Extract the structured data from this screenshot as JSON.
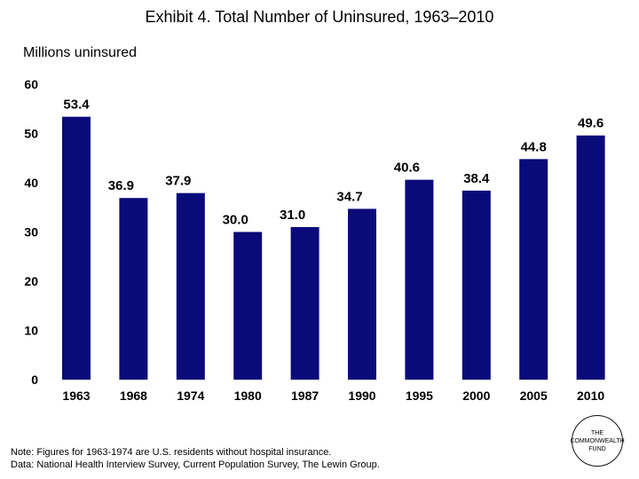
{
  "chart_data": {
    "type": "bar",
    "title": "Exhibit 4. Total Number of Uninsured, 1963–2010",
    "ylabel": "Millions uninsured",
    "xlabel": "",
    "categories": [
      "1963",
      "1968",
      "1974",
      "1980",
      "1987",
      "1990",
      "1995",
      "2000",
      "2005",
      "2010"
    ],
    "values": [
      53.4,
      36.9,
      37.9,
      30.0,
      31.0,
      34.7,
      40.6,
      38.4,
      44.8,
      49.6
    ],
    "value_labels": [
      "53.4",
      "36.9",
      "37.9",
      "30.0",
      "31.0",
      "34.7",
      "40.6",
      "38.4",
      "44.8",
      "49.6"
    ],
    "ylim": [
      0,
      60
    ],
    "yticks": [
      "0",
      "10",
      "20",
      "30",
      "40",
      "50",
      "60"
    ],
    "grid": false,
    "bar_color": "#0a0a7a"
  },
  "footer": {
    "note": "Note: Figures for 1963-1974 are U.S. residents without hospital insurance.",
    "data_source": "Data: National Health Interview Survey, Current Population Survey, The Lewin Group."
  },
  "logo": {
    "line1": "THE",
    "line2": "COMMONWEALTH",
    "line3": "FUND"
  }
}
